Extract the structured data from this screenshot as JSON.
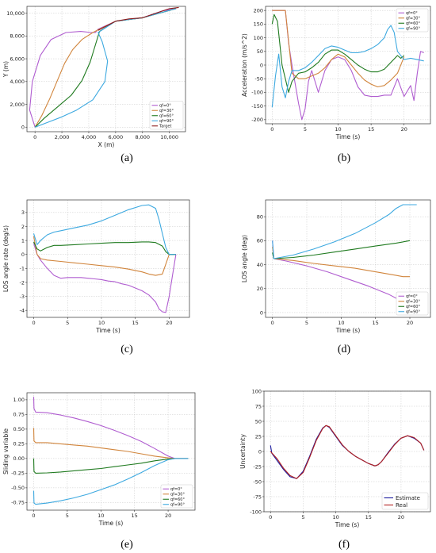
{
  "chart_data": [
    {
      "id": "a",
      "type": "line",
      "caption": "(a)",
      "xlabel": "X (m)",
      "ylabel": "Y (m)",
      "xlim": [
        -600,
        11200
      ],
      "ylim": [
        -400,
        10600
      ],
      "xticks": [
        0,
        2000,
        4000,
        6000,
        8000,
        10000
      ],
      "xtick_labels": [
        "0",
        "2,000",
        "4,000",
        "6,000",
        "8,000",
        "10,000"
      ],
      "yticks": [
        0,
        2000,
        4000,
        6000,
        8000,
        10000
      ],
      "ytick_labels": [
        "0",
        "2,000",
        "4,000",
        "6,000",
        "8,000",
        "10,000"
      ],
      "grid": true,
      "legend_position": "bottom-right",
      "series": [
        {
          "name": "qf=0°",
          "color": "#b05dd0",
          "x": [
            0,
            -400,
            -200,
            400,
            1200,
            2300,
            3400,
            4200,
            4500,
            4700,
            6000,
            8000,
            9500,
            10500
          ],
          "y": [
            0,
            1500,
            4000,
            6300,
            7700,
            8300,
            8400,
            8300,
            8300,
            8600,
            9300,
            9600,
            10200,
            10400
          ]
        },
        {
          "name": "qf=30°",
          "color": "#d1853c",
          "x": [
            0,
            500,
            1100,
            1700,
            2200,
            2800,
            3500,
            4300,
            4800,
            6000,
            8000,
            10500
          ],
          "y": [
            0,
            1000,
            2500,
            4200,
            5600,
            6800,
            7700,
            8300,
            8600,
            9300,
            9600,
            10400
          ]
        },
        {
          "name": "qf=60°",
          "color": "#1f7a1f",
          "x": [
            0,
            700,
            1700,
            2700,
            3500,
            4100,
            4800,
            6000,
            8000,
            10500
          ],
          "y": [
            0,
            800,
            1800,
            2800,
            4100,
            5700,
            8400,
            9300,
            9600,
            10400
          ]
        },
        {
          "name": "qf=90°",
          "color": "#3da9e0",
          "x": [
            0,
            900,
            2000,
            3100,
            4300,
            5200,
            5400,
            5000,
            4700,
            6000,
            8000,
            10500
          ],
          "y": [
            0,
            400,
            900,
            1500,
            2400,
            4000,
            5800,
            7500,
            8300,
            9300,
            9600,
            10400
          ]
        },
        {
          "name": "Target",
          "color": "#8b1a1a",
          "x": [
            4700,
            6000,
            7000,
            8000,
            9000,
            10000,
            10700
          ],
          "y": [
            8500,
            9300,
            9500,
            9600,
            10000,
            10400,
            10500
          ]
        }
      ]
    },
    {
      "id": "b",
      "type": "line",
      "caption": "(b)",
      "xlabel": "Time (s)",
      "ylabel": "Acceleration (m/s^2)",
      "xlim": [
        -1,
        24
      ],
      "ylim": [
        -215,
        215
      ],
      "xticks": [
        0,
        5,
        10,
        15,
        20
      ],
      "yticks": [
        -200,
        -150,
        -100,
        -50,
        0,
        50,
        100,
        150,
        200
      ],
      "grid": true,
      "legend_position": "top-right",
      "series": [
        {
          "name": "qf=0°",
          "color": "#b05dd0",
          "x": [
            0,
            1,
            2,
            2.5,
            3,
            4,
            4.5,
            5,
            5.5,
            6,
            7,
            8,
            9,
            10,
            11,
            12,
            13,
            14,
            15,
            16,
            17,
            18,
            19,
            20,
            21,
            21.5,
            22,
            22.5,
            23
          ],
          "y": [
            200,
            200,
            200,
            80,
            0,
            -140,
            -200,
            -160,
            -60,
            -20,
            -100,
            -20,
            20,
            30,
            20,
            -20,
            -80,
            -110,
            -115,
            -115,
            -110,
            -110,
            -50,
            -115,
            -75,
            -130,
            -30,
            50,
            45
          ]
        },
        {
          "name": "qf=30°",
          "color": "#d1853c",
          "x": [
            0,
            0.5,
            1,
            2,
            3,
            4,
            5,
            6,
            7,
            8,
            9,
            10,
            11,
            12,
            13,
            14,
            15,
            16,
            17,
            18,
            19,
            20
          ],
          "y": [
            200,
            200,
            200,
            200,
            -30,
            -50,
            -50,
            -40,
            -30,
            -10,
            20,
            40,
            30,
            0,
            -30,
            -55,
            -70,
            -80,
            -75,
            -55,
            -30,
            30
          ]
        },
        {
          "name": "qf=60°",
          "color": "#1f7a1f",
          "x": [
            0,
            0.3,
            0.8,
            1.5,
            2.5,
            3,
            4,
            5,
            6,
            7,
            8,
            9,
            10,
            11,
            12,
            13,
            14,
            15,
            16,
            17,
            18,
            19,
            19.5,
            20
          ],
          "y": [
            150,
            185,
            160,
            0,
            -100,
            -60,
            -30,
            -25,
            -10,
            10,
            40,
            55,
            55,
            40,
            20,
            0,
            -15,
            -25,
            -25,
            -15,
            10,
            35,
            25,
            35
          ]
        },
        {
          "name": "qf=90°",
          "color": "#3da9e0",
          "x": [
            0,
            0.5,
            1,
            1.5,
            2,
            2.5,
            3,
            4,
            5,
            6,
            7,
            8,
            9,
            10,
            11,
            12,
            13,
            14,
            15,
            16,
            17,
            17.5,
            18,
            18.5,
            19,
            20,
            21,
            22,
            23
          ],
          "y": [
            -155,
            -40,
            40,
            -80,
            -120,
            -60,
            -20,
            -20,
            -10,
            10,
            35,
            60,
            70,
            65,
            55,
            45,
            45,
            50,
            60,
            75,
            100,
            130,
            145,
            120,
            50,
            20,
            25,
            20,
            15
          ]
        }
      ]
    },
    {
      "id": "c",
      "type": "line",
      "caption": "(c)",
      "xlabel": "Time (s)",
      "ylabel": "LOS angle rate (deg/s)",
      "xlim": [
        -1,
        23
      ],
      "ylim": [
        -4.5,
        3.9
      ],
      "xticks": [
        0,
        5,
        10,
        15,
        20
      ],
      "yticks": [
        -4,
        -3,
        -2,
        -1,
        0,
        1,
        2,
        3
      ],
      "grid": true,
      "legend_position": "none",
      "series": [
        {
          "name": "qf=0°",
          "color": "#b05dd0",
          "x": [
            0,
            0.5,
            1,
            2,
            3,
            4,
            5,
            6,
            7,
            8,
            9,
            10,
            11,
            12,
            13,
            14,
            15,
            16,
            17,
            18,
            18.5,
            19,
            19.5,
            20,
            20.5,
            21
          ],
          "y": [
            0.8,
            0,
            -0.4,
            -1.0,
            -1.5,
            -1.7,
            -1.65,
            -1.65,
            -1.65,
            -1.7,
            -1.75,
            -1.8,
            -1.9,
            -1.95,
            -2.1,
            -2.2,
            -2.4,
            -2.6,
            -2.9,
            -3.4,
            -3.9,
            -4.1,
            -4.15,
            -3.0,
            -1.5,
            0
          ]
        },
        {
          "name": "qf=30°",
          "color": "#d1853c",
          "x": [
            0,
            0.5,
            1,
            2,
            4,
            6,
            8,
            10,
            12,
            14,
            16,
            17,
            18,
            19,
            20,
            21
          ],
          "y": [
            1.3,
            0,
            -0.3,
            -0.4,
            -0.5,
            -0.6,
            -0.7,
            -0.8,
            -0.9,
            -1.05,
            -1.25,
            -1.4,
            -1.5,
            -1.4,
            0,
            0
          ]
        },
        {
          "name": "qf=60°",
          "color": "#1f7a1f",
          "x": [
            0,
            0.5,
            1,
            2,
            3,
            4,
            6,
            8,
            10,
            12,
            14,
            16,
            17,
            18,
            19,
            19.5,
            20,
            21
          ],
          "y": [
            0.9,
            0.4,
            0.25,
            0.5,
            0.65,
            0.65,
            0.7,
            0.75,
            0.8,
            0.85,
            0.85,
            0.9,
            0.9,
            0.85,
            0.6,
            0.2,
            0,
            0
          ]
        },
        {
          "name": "qf=90°",
          "color": "#3da9e0",
          "x": [
            0,
            0.5,
            1,
            2,
            3,
            4,
            6,
            8,
            10,
            12,
            14,
            16,
            17,
            18,
            18.5,
            19,
            19.5,
            20,
            21
          ],
          "y": [
            1.5,
            0.7,
            1.0,
            1.4,
            1.6,
            1.7,
            1.9,
            2.1,
            2.4,
            2.8,
            3.2,
            3.5,
            3.55,
            3.3,
            2.5,
            1.5,
            0.5,
            0,
            0
          ]
        }
      ]
    },
    {
      "id": "d",
      "type": "line",
      "caption": "(d)",
      "xlabel": "Time (s)",
      "ylabel": "LOS angle (deg)",
      "xlim": [
        -1,
        23
      ],
      "ylim": [
        -4,
        94
      ],
      "xticks": [
        0,
        5,
        10,
        15,
        20
      ],
      "yticks": [
        0,
        20,
        40,
        60,
        80
      ],
      "grid": true,
      "legend_position": "bottom-right",
      "series": [
        {
          "name": "qf=0°",
          "color": "#b05dd0",
          "x": [
            0,
            0.2,
            2,
            5,
            8,
            11,
            14,
            17,
            19,
            20
          ],
          "y": [
            60,
            45,
            43,
            39,
            34,
            28,
            22,
            15,
            9,
            5
          ]
        },
        {
          "name": "qf=30°",
          "color": "#d1853c",
          "x": [
            0,
            0.2,
            3,
            6,
            9,
            12,
            15,
            18,
            19,
            20
          ],
          "y": [
            55,
            45,
            43.5,
            41,
            39,
            37,
            34,
            31,
            30,
            30
          ]
        },
        {
          "name": "qf=60°",
          "color": "#1f7a1f",
          "x": [
            0,
            0.2,
            3,
            6,
            9,
            12,
            15,
            18,
            19.5,
            20
          ],
          "y": [
            50,
            45,
            46,
            48,
            50.5,
            53,
            55.5,
            58,
            59.5,
            60
          ]
        },
        {
          "name": "qf=90°",
          "color": "#3da9e0",
          "x": [
            0,
            0.2,
            3,
            6,
            9,
            12,
            15,
            17,
            18,
            19,
            20,
            21
          ],
          "y": [
            60,
            45,
            48,
            53,
            59,
            66,
            75,
            82,
            87,
            90,
            90,
            90
          ]
        }
      ]
    },
    {
      "id": "e",
      "type": "line",
      "caption": "(e)",
      "xlabel": "Time (s)",
      "ylabel": "Sliding variable",
      "xlim": [
        -1,
        24
      ],
      "ylim": [
        -0.88,
        1.12
      ],
      "xticks": [
        0,
        5,
        10,
        15,
        20
      ],
      "yticks": [
        -0.75,
        -0.5,
        -0.25,
        0.0,
        0.25,
        0.5,
        0.75,
        1.0
      ],
      "ytick_labels": [
        "-0.75",
        "-0.50",
        "-0.25",
        "0.00",
        "0.25",
        "0.50",
        "0.75",
        "1.00"
      ],
      "grid": true,
      "legend_position": "bottom-right",
      "series": [
        {
          "name": "qf=0°",
          "color": "#b05dd0",
          "x": [
            0,
            0.05,
            0.3,
            2,
            4,
            6,
            8,
            10,
            12,
            14,
            16,
            18,
            20,
            21,
            23
          ],
          "y": [
            1.05,
            0.85,
            0.79,
            0.78,
            0.74,
            0.69,
            0.63,
            0.56,
            0.48,
            0.39,
            0.29,
            0.17,
            0.04,
            0,
            0
          ]
        },
        {
          "name": "qf=30°",
          "color": "#d1853c",
          "x": [
            0,
            0.05,
            0.3,
            2,
            4,
            6,
            8,
            10,
            12,
            14,
            16,
            18,
            20,
            21,
            23
          ],
          "y": [
            0.52,
            0.3,
            0.27,
            0.27,
            0.25,
            0.23,
            0.21,
            0.18,
            0.15,
            0.12,
            0.08,
            0.04,
            0.01,
            0,
            0
          ]
        },
        {
          "name": "qf=60°",
          "color": "#1f7a1f",
          "x": [
            0,
            0.05,
            0.3,
            2,
            4,
            6,
            8,
            10,
            12,
            14,
            16,
            18,
            20,
            21,
            23
          ],
          "y": [
            0,
            -0.22,
            -0.25,
            -0.245,
            -0.23,
            -0.21,
            -0.19,
            -0.17,
            -0.14,
            -0.11,
            -0.08,
            -0.04,
            -0.01,
            0,
            0
          ]
        },
        {
          "name": "qf=90°",
          "color": "#3da9e0",
          "x": [
            0,
            0.05,
            0.3,
            2,
            4,
            6,
            8,
            10,
            12,
            14,
            16,
            18,
            20,
            21,
            23
          ],
          "y": [
            -0.55,
            -0.76,
            -0.78,
            -0.76,
            -0.72,
            -0.67,
            -0.61,
            -0.53,
            -0.45,
            -0.35,
            -0.24,
            -0.12,
            -0.02,
            0,
            0
          ]
        }
      ]
    },
    {
      "id": "f",
      "type": "line",
      "caption": "(f)",
      "xlabel": "Time (s)",
      "ylabel": "Uncertainty",
      "xlim": [
        -1,
        24.5
      ],
      "ylim": [
        -100,
        100
      ],
      "xticks": [
        0,
        5,
        10,
        15,
        20
      ],
      "yticks": [
        -100,
        -75,
        -50,
        -25,
        0,
        25,
        50,
        75,
        100
      ],
      "grid": true,
      "legend_position": "bottom-right",
      "series": [
        {
          "name": "Estimate",
          "color": "#1a1a9e",
          "x": [
            0,
            0.2,
            1,
            2,
            3,
            4,
            5,
            6,
            7,
            8,
            8.5,
            9,
            10,
            11,
            12,
            13,
            14,
            15,
            16,
            16.5,
            17,
            18,
            19,
            20,
            21,
            22,
            23,
            23.5
          ],
          "y": [
            10,
            -3,
            -15,
            -30,
            -42,
            -45,
            -33,
            -8,
            20,
            39,
            43,
            40,
            25,
            10,
            0,
            -8,
            -14,
            -20,
            -24,
            -22,
            -17,
            -2,
            12,
            22,
            26,
            22,
            14,
            2
          ]
        },
        {
          "name": "Real",
          "color": "#b22222",
          "x": [
            0,
            1,
            2,
            3,
            4,
            5,
            6,
            7,
            8,
            8.5,
            9,
            10,
            11,
            12,
            13,
            14,
            15,
            16,
            16.5,
            17,
            18,
            19,
            20,
            21,
            22,
            23,
            23.5
          ],
          "y": [
            0,
            -12,
            -28,
            -40,
            -45,
            -35,
            -10,
            18,
            38,
            43,
            41,
            26,
            11,
            0,
            -8,
            -14,
            -20,
            -24,
            -22,
            -17,
            -3,
            11,
            22,
            26,
            23,
            14,
            2
          ]
        }
      ]
    }
  ]
}
